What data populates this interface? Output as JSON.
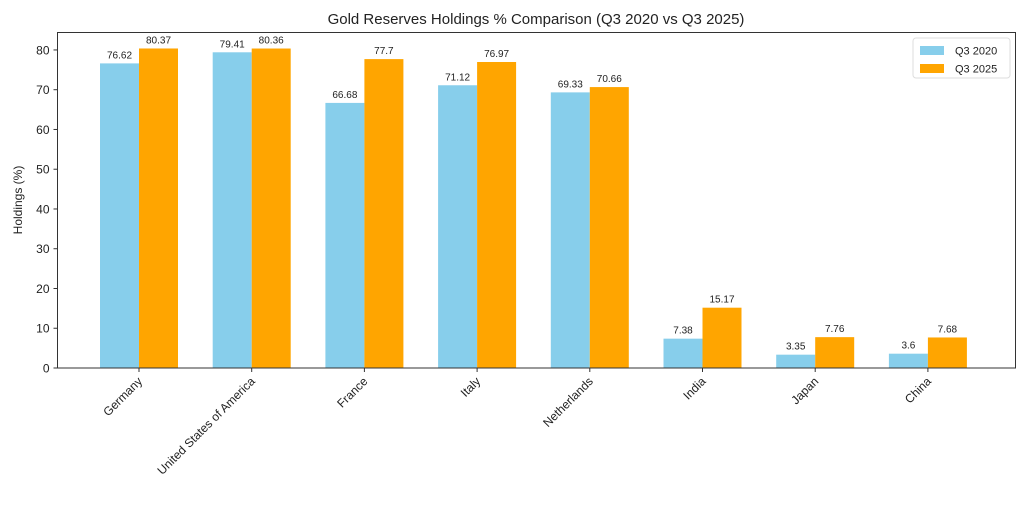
{
  "chart_data": {
    "type": "bar",
    "title": "Gold Reserves Holdings % Comparison (Q3 2020 vs Q3 2025)",
    "xlabel": "",
    "ylabel": "Holdings (%)",
    "ylim": [
      0,
      84.39
    ],
    "yticks": [
      0,
      10,
      20,
      30,
      40,
      50,
      60,
      70,
      80
    ],
    "grid": false,
    "legend_position": "top-right",
    "categories": [
      "Germany",
      "United States of America",
      "France",
      "Italy",
      "Netherlands",
      "India",
      "Japan",
      "China"
    ],
    "series": [
      {
        "name": "Q3 2020",
        "color": "#87CEEB",
        "values": [
          76.62,
          79.41,
          66.68,
          71.12,
          69.33,
          7.38,
          3.35,
          3.6
        ]
      },
      {
        "name": "Q3 2025",
        "color": "#FFA500",
        "values": [
          80.37,
          80.36,
          77.7,
          76.97,
          70.66,
          15.17,
          7.76,
          7.68
        ]
      }
    ]
  }
}
